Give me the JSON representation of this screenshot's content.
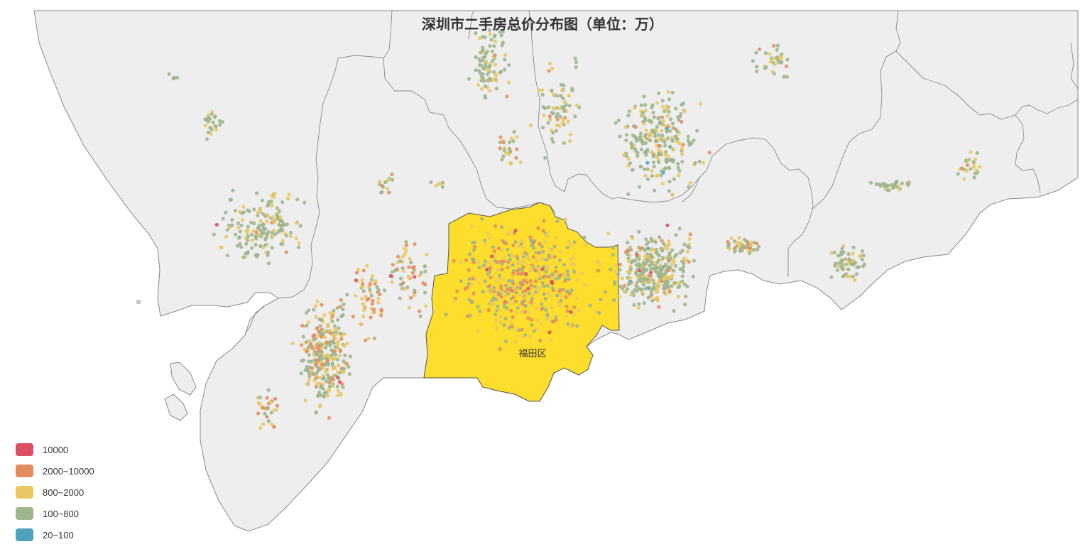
{
  "title": "深圳市二手房总价分布图（单位：万）",
  "map": {
    "highlighted_district": "福田区",
    "land_color": "#eeeeee",
    "border_color": "#888888",
    "highlight_color": "#fdde2d"
  },
  "legend": {
    "items": [
      {
        "label": "10000",
        "color": "#dd5064"
      },
      {
        "label": "2000~10000",
        "color": "#e58c5e"
      },
      {
        "label": "800~2000",
        "color": "#eac763"
      },
      {
        "label": "100~800",
        "color": "#9db58c"
      },
      {
        "label": "20~100",
        "color": "#4fa2bf"
      }
    ]
  }
}
